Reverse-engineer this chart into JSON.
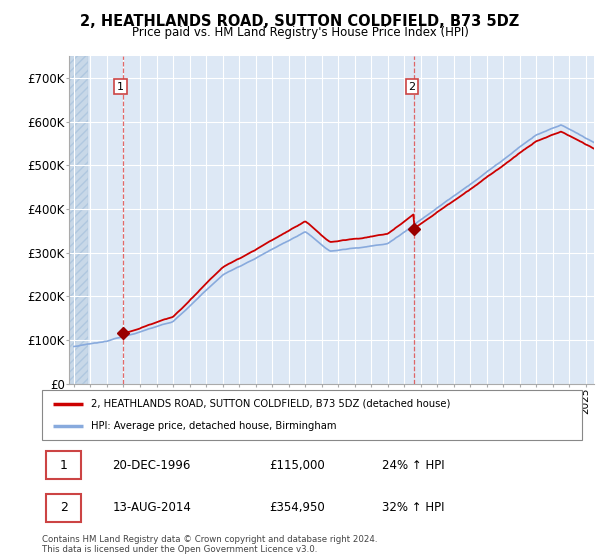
{
  "title_line1": "2, HEATHLANDS ROAD, SUTTON COLDFIELD, B73 5DZ",
  "title_line2": "Price paid vs. HM Land Registry's House Price Index (HPI)",
  "ylim": [
    0,
    750000
  ],
  "yticks": [
    0,
    100000,
    200000,
    300000,
    400000,
    500000,
    600000,
    700000
  ],
  "ytick_labels": [
    "£0",
    "£100K",
    "£200K",
    "£300K",
    "£400K",
    "£500K",
    "£600K",
    "£700K"
  ],
  "xlim_start": 1993.7,
  "xlim_end": 2025.5,
  "sale1_x": 1996.97,
  "sale1_y": 115000,
  "sale2_x": 2014.62,
  "sale2_y": 354950,
  "line_color_sale": "#cc0000",
  "line_color_hpi": "#88aadd",
  "marker_color": "#990000",
  "plot_bg_color": "#dde8f5",
  "legend_label1": "2, HEATHLANDS ROAD, SUTTON COLDFIELD, B73 5DZ (detached house)",
  "legend_label2": "HPI: Average price, detached house, Birmingham",
  "table_row1": [
    "1",
    "20-DEC-1996",
    "£115,000",
    "24% ↑ HPI"
  ],
  "table_row2": [
    "2",
    "13-AUG-2014",
    "£354,950",
    "32% ↑ HPI"
  ],
  "footer": "Contains HM Land Registry data © Crown copyright and database right 2024.\nThis data is licensed under the Open Government Licence v3.0.",
  "bg_color": "#ffffff",
  "grid_color": "#ffffff",
  "hatch_color": "#c8d8e8"
}
